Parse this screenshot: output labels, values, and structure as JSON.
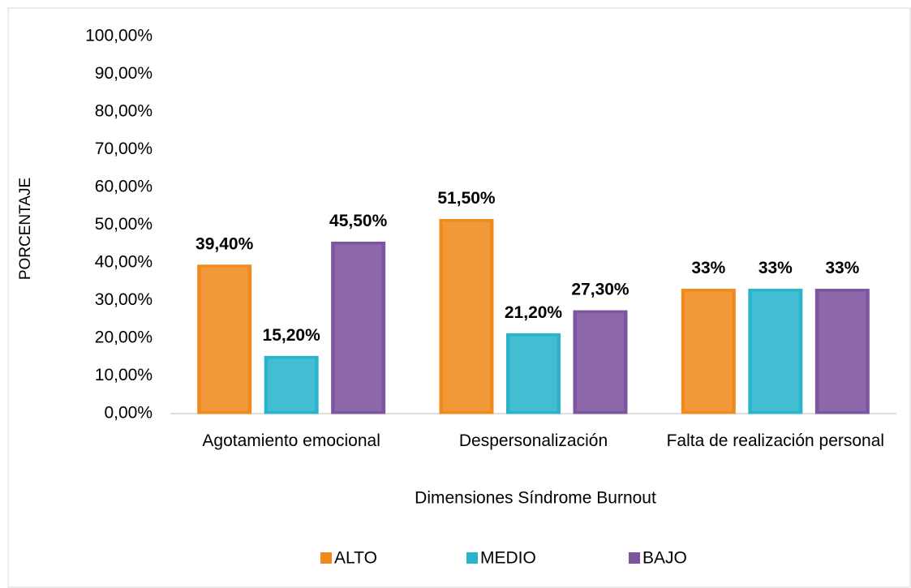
{
  "chart_data": {
    "type": "bar",
    "categories": [
      "Agotamiento emocional",
      "Despersonalización",
      "Falta de realización personal"
    ],
    "series": [
      {
        "name": "ALTO",
        "color": "#f08a1e",
        "values": [
          39.4,
          51.5,
          33
        ],
        "value_labels": [
          "39,40%",
          "51,50%",
          "33%"
        ]
      },
      {
        "name": "MEDIO",
        "color": "#2ab4cb",
        "values": [
          15.2,
          21.2,
          33
        ],
        "value_labels": [
          "15,20%",
          "21,20%",
          "33%"
        ]
      },
      {
        "name": "BAJO",
        "color": "#7d549f",
        "values": [
          45.5,
          27.3,
          33
        ],
        "value_labels": [
          "45,50%",
          "27,30%",
          "33%"
        ]
      }
    ],
    "ylim": [
      0,
      100
    ],
    "yticks": [
      {
        "value": 0,
        "label": "0,00%"
      },
      {
        "value": 10,
        "label": "10,00%"
      },
      {
        "value": 20,
        "label": "20,00%"
      },
      {
        "value": 30,
        "label": "30,00%"
      },
      {
        "value": 40,
        "label": "40,00%"
      },
      {
        "value": 50,
        "label": "50,00%"
      },
      {
        "value": 60,
        "label": "60,00%"
      },
      {
        "value": 70,
        "label": "70,00%"
      },
      {
        "value": 80,
        "label": "80,00%"
      },
      {
        "value": 90,
        "label": "90,00%"
      },
      {
        "value": 100,
        "label": "100,00%"
      }
    ],
    "ylabel": "PORCENTAJE",
    "xlabel": "Dimensiones Síndrome Burnout",
    "legend": "bottom"
  }
}
